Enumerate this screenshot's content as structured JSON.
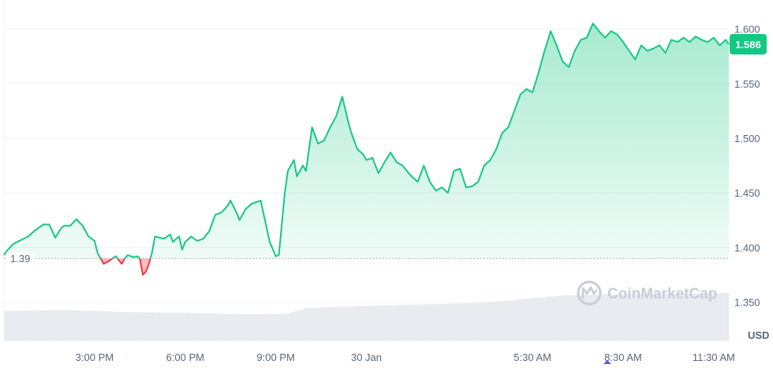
{
  "chart_data": {
    "type": "area",
    "unit_label": "USD",
    "watermark": "CoinMarketCap",
    "reference_value": 1.39,
    "reference_label": "1.39",
    "current_value": 1.586,
    "current_label": "1.586",
    "ylim": [
      1.315,
      1.625
    ],
    "y_ticks": [
      {
        "value": 1.35,
        "label": "1.350"
      },
      {
        "value": 1.4,
        "label": "1.400"
      },
      {
        "value": 1.45,
        "label": "1.450"
      },
      {
        "value": 1.5,
        "label": "1.500"
      },
      {
        "value": 1.55,
        "label": "1.550"
      },
      {
        "value": 1.6,
        "label": "1.600"
      }
    ],
    "x_ticks": [
      {
        "t": 3.0,
        "label": "3:00 PM"
      },
      {
        "t": 6.0,
        "label": "6:00 PM"
      },
      {
        "t": 9.0,
        "label": "9:00 PM"
      },
      {
        "t": 12.0,
        "label": "30 Jan"
      },
      {
        "t": 17.5,
        "label": "5:30 AM"
      },
      {
        "t": 20.5,
        "label": "8:30 AM"
      },
      {
        "t": 23.5,
        "label": "11:30 AM"
      }
    ],
    "colors": {
      "up": "#16c784",
      "down": "#ea3943",
      "grid": "#eff2f5",
      "volume": "#e6e9ee"
    },
    "series": [
      {
        "x": [
          0,
          0.1,
          0.3,
          0.5,
          0.8,
          1.0,
          1.3,
          1.5,
          1.7,
          1.9,
          2.0,
          2.2,
          2.4,
          2.6,
          2.8,
          3.0,
          3.1,
          3.3,
          3.5,
          3.7,
          3.9,
          4.0,
          4.1,
          4.3,
          4.4,
          4.5,
          4.6,
          4.7,
          4.8,
          4.9,
          5.0,
          5.3,
          5.5,
          5.6,
          5.7,
          5.8,
          5.9,
          6.0,
          6.2,
          6.4,
          6.6,
          6.8,
          7.0,
          7.2,
          7.4,
          7.5,
          7.7,
          7.8,
          8.0,
          8.2,
          8.5,
          8.8,
          9.0,
          9.1,
          9.3,
          9.4,
          9.6,
          9.7,
          9.9,
          10.0,
          10.2,
          10.4,
          10.6,
          10.8,
          11.0,
          11.2,
          11.4,
          11.5,
          11.7,
          11.9,
          12.0,
          12.2,
          12.4,
          12.6,
          12.8,
          13.0,
          13.2,
          13.4,
          13.5,
          13.7,
          13.9,
          14.1,
          14.3,
          14.5,
          14.7,
          14.9,
          15.1,
          15.3,
          15.5,
          15.7,
          15.9,
          16.1,
          16.3,
          16.5,
          16.7,
          16.9,
          17.1,
          17.3,
          17.5,
          17.7,
          17.9,
          18.1,
          18.3,
          18.5,
          18.7,
          18.9,
          19.1,
          19.3,
          19.5,
          19.7,
          19.9,
          20.1,
          20.3,
          20.5,
          20.7,
          20.9,
          21.1,
          21.3,
          21.5,
          21.7,
          21.9,
          22.1,
          22.3,
          22.5,
          22.7,
          22.9,
          23.1,
          23.3,
          23.5,
          23.7,
          23.9,
          24.0
        ],
        "values": [
          1.393,
          1.397,
          1.403,
          1.406,
          1.41,
          1.415,
          1.421,
          1.421,
          1.409,
          1.418,
          1.42,
          1.42,
          1.426,
          1.42,
          1.41,
          1.406,
          1.395,
          1.385,
          1.388,
          1.392,
          1.385,
          1.39,
          1.393,
          1.391,
          1.392,
          1.39,
          1.375,
          1.378,
          1.385,
          1.395,
          1.41,
          1.408,
          1.412,
          1.405,
          1.408,
          1.41,
          1.398,
          1.405,
          1.41,
          1.406,
          1.408,
          1.415,
          1.43,
          1.432,
          1.438,
          1.443,
          1.432,
          1.425,
          1.435,
          1.44,
          1.443,
          1.405,
          1.392,
          1.393,
          1.45,
          1.47,
          1.48,
          1.465,
          1.475,
          1.47,
          1.51,
          1.495,
          1.498,
          1.51,
          1.52,
          1.538,
          1.515,
          1.505,
          1.49,
          1.485,
          1.48,
          1.482,
          1.468,
          1.478,
          1.487,
          1.478,
          1.475,
          1.468,
          1.465,
          1.46,
          1.475,
          1.46,
          1.452,
          1.455,
          1.45,
          1.47,
          1.472,
          1.455,
          1.456,
          1.46,
          1.475,
          1.48,
          1.49,
          1.505,
          1.51,
          1.525,
          1.54,
          1.545,
          1.542,
          1.56,
          1.58,
          1.598,
          1.585,
          1.57,
          1.565,
          1.58,
          1.59,
          1.592,
          1.605,
          1.598,
          1.592,
          1.598,
          1.595,
          1.588,
          1.58,
          1.572,
          1.585,
          1.58,
          1.582,
          1.585,
          1.578,
          1.59,
          1.588,
          1.592,
          1.588,
          1.593,
          1.59,
          1.588,
          1.592,
          1.585,
          1.59,
          1.586
        ]
      }
    ],
    "volume": {
      "x": [
        0,
        2,
        4,
        6,
        8,
        9.4,
        10,
        12,
        14,
        16,
        18,
        18.6,
        20,
        22,
        24
      ],
      "values": [
        0.62,
        0.64,
        0.6,
        0.58,
        0.55,
        0.56,
        0.68,
        0.73,
        0.76,
        0.8,
        0.92,
        0.95,
        0.97,
        0.98,
        1.0
      ]
    }
  }
}
